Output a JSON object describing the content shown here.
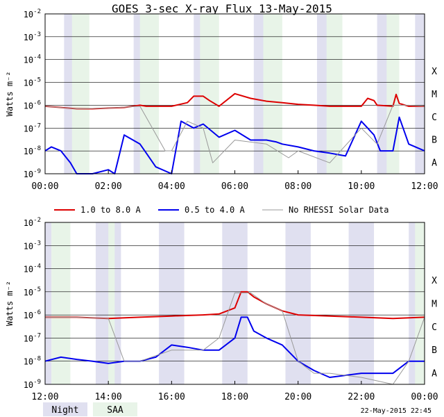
{
  "chart_data": [
    {
      "type": "line",
      "title": "GOES 3-sec X-ray Flux   13-May-2015",
      "ylabel": "Watts m⁻²",
      "y_scale": "log",
      "ylim": [
        1e-09,
        0.01
      ],
      "y_ticks": [
        {
          "base": "10",
          "exp": "-9",
          "v": 1e-09
        },
        {
          "base": "10",
          "exp": "-8",
          "v": 1e-08
        },
        {
          "base": "10",
          "exp": "-7",
          "v": 1e-07
        },
        {
          "base": "10",
          "exp": "-6",
          "v": 1e-06
        },
        {
          "base": "10",
          "exp": "-5",
          "v": 1e-05
        },
        {
          "base": "10",
          "exp": "-4",
          "v": 0.0001
        },
        {
          "base": "10",
          "exp": "-3",
          "v": 0.001
        },
        {
          "base": "10",
          "exp": "-2",
          "v": 0.01
        }
      ],
      "flare_classes": [
        {
          "label": "A",
          "v": 1e-08
        },
        {
          "label": "B",
          "v": 1e-07
        },
        {
          "label": "C",
          "v": 1e-06
        },
        {
          "label": "M",
          "v": 1e-05
        },
        {
          "label": "X",
          "v": 0.0001
        }
      ],
      "xlim_hours": [
        0,
        12
      ],
      "x_ticks": [
        "00:00",
        "02:00",
        "04:00",
        "06:00",
        "08:00",
        "10:00",
        "12:00"
      ],
      "night_intervals_hours": [
        [
          0.6,
          1.2
        ],
        [
          2.8,
          3.4
        ],
        [
          4.7,
          5.3
        ],
        [
          6.6,
          7.2
        ],
        [
          8.6,
          9.2
        ],
        [
          10.5,
          11.1
        ],
        [
          11.7,
          12.0
        ]
      ],
      "saa_intervals_hours": [
        [
          0.85,
          1.4
        ],
        [
          3.0,
          3.6
        ],
        [
          4.9,
          5.5
        ],
        [
          6.9,
          7.5
        ],
        [
          8.9,
          9.4
        ],
        [
          10.8,
          11.2
        ]
      ],
      "series": [
        {
          "name": "1.0 to 8.0 A",
          "color": "#dd0000",
          "x": [
            0.0,
            0.5,
            1.0,
            1.5,
            2.0,
            2.5,
            3.0,
            3.2,
            3.5,
            4.0,
            4.5,
            4.7,
            5.0,
            5.2,
            5.5,
            6.0,
            6.5,
            7.0,
            7.5,
            8.0,
            8.5,
            9.0,
            9.5,
            10.0,
            10.2,
            10.4,
            10.5,
            11.0,
            11.1,
            11.2,
            11.5,
            12.0
          ],
          "values": [
            9e-07,
            8e-07,
            7e-07,
            7e-07,
            7.5e-07,
            8e-07,
            1e-06,
            9e-07,
            9e-07,
            9e-07,
            1.3e-06,
            2.5e-06,
            2.5e-06,
            1.6e-06,
            9e-07,
            3.2e-06,
            2e-06,
            1.5e-06,
            1.3e-06,
            1.1e-06,
            1e-06,
            9e-07,
            9e-07,
            9e-07,
            2e-06,
            1.6e-06,
            1e-06,
            9e-07,
            3e-06,
            1.2e-06,
            9e-07,
            9e-07
          ]
        },
        {
          "name": "0.5 to 4.0 A",
          "color": "#0000ee",
          "x": [
            0.0,
            0.2,
            0.5,
            0.8,
            1.0,
            1.5,
            2.0,
            2.2,
            2.5,
            3.0,
            3.2,
            3.5,
            4.0,
            4.3,
            4.7,
            5.0,
            5.5,
            6.0,
            6.5,
            7.0,
            7.3,
            7.5,
            8.0,
            8.5,
            9.0,
            9.5,
            10.0,
            10.4,
            10.6,
            11.0,
            11.2,
            11.5,
            12.0
          ],
          "values": [
            1e-08,
            1.5e-08,
            1e-08,
            3e-09,
            1e-09,
            1e-09,
            1.5e-09,
            1e-09,
            5e-08,
            2e-08,
            8e-09,
            2e-09,
            1e-09,
            2e-07,
            1e-07,
            1.5e-07,
            4e-08,
            8e-08,
            3e-08,
            3e-08,
            2.5e-08,
            2e-08,
            1.5e-08,
            1e-08,
            8e-09,
            6e-09,
            2e-07,
            5e-08,
            1e-08,
            1e-08,
            3e-07,
            2e-08,
            1e-08
          ]
        },
        {
          "name": "No RHESSI Solar Data",
          "color": "#999999",
          "x": [
            0.0,
            1.0,
            2.0,
            3.0,
            3.8,
            4.0,
            4.5,
            5.0,
            5.3,
            6.0,
            7.0,
            7.7,
            8.0,
            9.0,
            10.0,
            10.5,
            11.0,
            11.5,
            12.0
          ],
          "values": [
            9e-07,
            7e-07,
            7.5e-07,
            9e-07,
            1e-08,
            1e-08,
            2e-07,
            1e-07,
            3e-09,
            3e-08,
            2e-08,
            5e-09,
            1e-08,
            3e-09,
            1e-07,
            2e-08,
            1e-06,
            1e-06,
            9e-07
          ]
        }
      ]
    },
    {
      "type": "line",
      "title": "",
      "ylabel": "Watts m⁻²",
      "y_scale": "log",
      "ylim": [
        1e-09,
        0.01
      ],
      "y_ticks": [
        {
          "base": "10",
          "exp": "-9",
          "v": 1e-09
        },
        {
          "base": "10",
          "exp": "-8",
          "v": 1e-08
        },
        {
          "base": "10",
          "exp": "-7",
          "v": 1e-07
        },
        {
          "base": "10",
          "exp": "-6",
          "v": 1e-06
        },
        {
          "base": "10",
          "exp": "-5",
          "v": 1e-05
        },
        {
          "base": "10",
          "exp": "-4",
          "v": 0.0001
        },
        {
          "base": "10",
          "exp": "-3",
          "v": 0.001
        },
        {
          "base": "10",
          "exp": "-2",
          "v": 0.01
        }
      ],
      "flare_classes": [
        {
          "label": "A",
          "v": 1e-08
        },
        {
          "label": "B",
          "v": 1e-07
        },
        {
          "label": "C",
          "v": 1e-06
        },
        {
          "label": "M",
          "v": 1e-05
        },
        {
          "label": "X",
          "v": 0.0001
        }
      ],
      "xlim_hours": [
        12,
        24
      ],
      "x_ticks": [
        "12:00",
        "14:00",
        "16:00",
        "18:00",
        "20:00",
        "22:00",
        "00:00"
      ],
      "night_intervals_hours": [
        [
          12.0,
          12.2
        ],
        [
          13.6,
          14.4
        ],
        [
          15.6,
          16.4
        ],
        [
          17.6,
          18.4
        ],
        [
          19.6,
          20.4
        ],
        [
          21.6,
          22.4
        ],
        [
          23.5,
          24.0
        ]
      ],
      "saa_intervals_hours": [
        [
          12.2,
          12.8
        ],
        [
          14.0,
          14.2
        ],
        [
          23.7,
          24.0
        ]
      ],
      "series": [
        {
          "name": "1.0 to 8.0 A",
          "color": "#dd0000",
          "x": [
            12.0,
            13.0,
            14.0,
            15.0,
            16.0,
            17.0,
            17.5,
            18.0,
            18.2,
            18.4,
            18.6,
            19.0,
            19.5,
            20.0,
            21.0,
            22.0,
            23.0,
            24.0
          ],
          "values": [
            8e-07,
            8e-07,
            7e-07,
            8e-07,
            9e-07,
            1e-06,
            1.1e-06,
            2e-06,
            1e-05,
            1e-05,
            6e-06,
            3e-06,
            1.5e-06,
            1e-06,
            9e-07,
            8e-07,
            7e-07,
            8e-07
          ]
        },
        {
          "name": "0.5 to 4.0 A",
          "color": "#0000ee",
          "x": [
            12.0,
            12.5,
            13.0,
            13.5,
            14.0,
            14.5,
            15.0,
            15.5,
            16.0,
            16.5,
            17.0,
            17.5,
            18.0,
            18.2,
            18.4,
            18.6,
            19.0,
            19.5,
            20.0,
            20.5,
            21.0,
            22.0,
            23.0,
            23.5,
            24.0
          ],
          "values": [
            1e-08,
            1.5e-08,
            1.2e-08,
            1e-08,
            8e-09,
            1e-08,
            1e-08,
            1.5e-08,
            5e-08,
            4e-08,
            3e-08,
            3e-08,
            1e-07,
            8e-07,
            8e-07,
            2e-07,
            1e-07,
            5e-08,
            1e-08,
            4e-09,
            2e-09,
            3e-09,
            3e-09,
            1e-08,
            1e-08
          ]
        },
        {
          "name": "No RHESSI Solar Data",
          "color": "#999999",
          "x": [
            12.0,
            13.0,
            14.0,
            14.5,
            15.0,
            16.0,
            17.0,
            17.5,
            18.0,
            18.5,
            19.0,
            19.5,
            20.0,
            20.5,
            21.0,
            22.0,
            23.0,
            23.5,
            24.0
          ],
          "values": [
            8e-07,
            8e-07,
            7e-07,
            1e-08,
            1e-08,
            3e-08,
            3e-08,
            1e-07,
            9e-06,
            9e-06,
            3e-06,
            1.5e-06,
            1e-08,
            3e-09,
            3e-09,
            2e-09,
            1e-09,
            1e-08,
            8e-07
          ]
        }
      ]
    }
  ],
  "legend": {
    "items": [
      {
        "label": "1.0 to 8.0 A",
        "color": "#dd0000"
      },
      {
        "label": "0.5 to 4.0 A",
        "color": "#0000ee"
      },
      {
        "label": "No RHESSI Solar Data",
        "color": "#999999"
      }
    ]
  },
  "key": {
    "night_label": "Night",
    "saa_label": "SAA",
    "night_color": "#e0e0f0",
    "saa_color": "#e8f4e8"
  },
  "timestamp": "22-May-2015 22:45"
}
